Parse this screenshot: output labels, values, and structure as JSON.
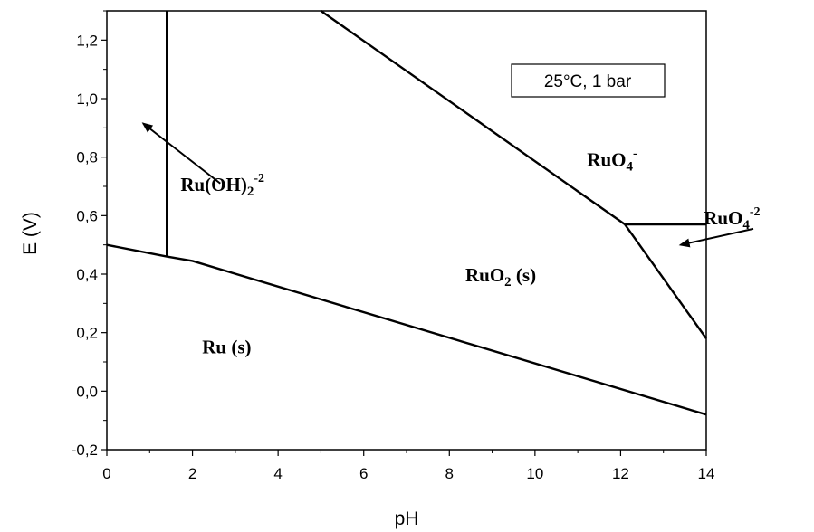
{
  "chart_data": {
    "type": "line",
    "xlabel": "pH",
    "ylabel": "E (V)",
    "xlim": [
      0,
      14
    ],
    "ylim": [
      -0.2,
      1.3
    ],
    "x_ticks": [
      0,
      2,
      4,
      6,
      8,
      10,
      12,
      14
    ],
    "x_tick_labels": [
      "0",
      "2",
      "4",
      "6",
      "8",
      "10",
      "12",
      "14"
    ],
    "y_ticks": [
      -0.2,
      0.0,
      0.2,
      0.4,
      0.6,
      0.8,
      1.0,
      1.2
    ],
    "y_tick_labels": [
      "-0,2",
      "0,0",
      "0,2",
      "0,4",
      "0,6",
      "0,8",
      "1,0",
      "1,2"
    ],
    "grid": false,
    "conditions_label": "25°C, 1 bar",
    "boundaries": [
      {
        "x": [
          0,
          1.4,
          2,
          14
        ],
        "y": [
          0.5,
          0.46,
          0.445,
          -0.08
        ]
      },
      {
        "x": [
          1.4,
          1.4
        ],
        "y": [
          0.46,
          1.3
        ]
      },
      {
        "x": [
          5.0,
          12.1
        ],
        "y": [
          1.3,
          0.57
        ]
      },
      {
        "x": [
          12.1,
          14
        ],
        "y": [
          0.57,
          0.57
        ]
      },
      {
        "x": [
          12.1,
          14
        ],
        "y": [
          0.57,
          0.18
        ]
      }
    ],
    "regions": [
      {
        "id": "ru",
        "base": "Ru (s)",
        "sub": "",
        "sup": "",
        "x": 2.8,
        "y": 0.13
      },
      {
        "id": "ruo2",
        "base": "RuO",
        "sub": "2",
        "sup": "",
        "after": " (s)",
        "x": 9.2,
        "y": 0.375
      },
      {
        "id": "ruo4m",
        "base": "RuO",
        "sub": "4",
        "sup": "-",
        "x": 11.8,
        "y": 0.77
      },
      {
        "id": "ruoh2",
        "base": "Ru(OH)",
        "sub": "2",
        "sup": "-2",
        "x": 2.7,
        "y": 0.685
      },
      {
        "id": "ruo4mm",
        "base": "RuO",
        "sub": "4",
        "sup": "-2",
        "x": 14.6,
        "y": 0.57
      }
    ],
    "arrows": [
      {
        "from": [
          2.65,
          0.71
        ],
        "to": [
          0.85,
          0.915
        ]
      },
      {
        "from": [
          15.1,
          0.555
        ],
        "to": [
          13.4,
          0.5
        ]
      }
    ]
  }
}
